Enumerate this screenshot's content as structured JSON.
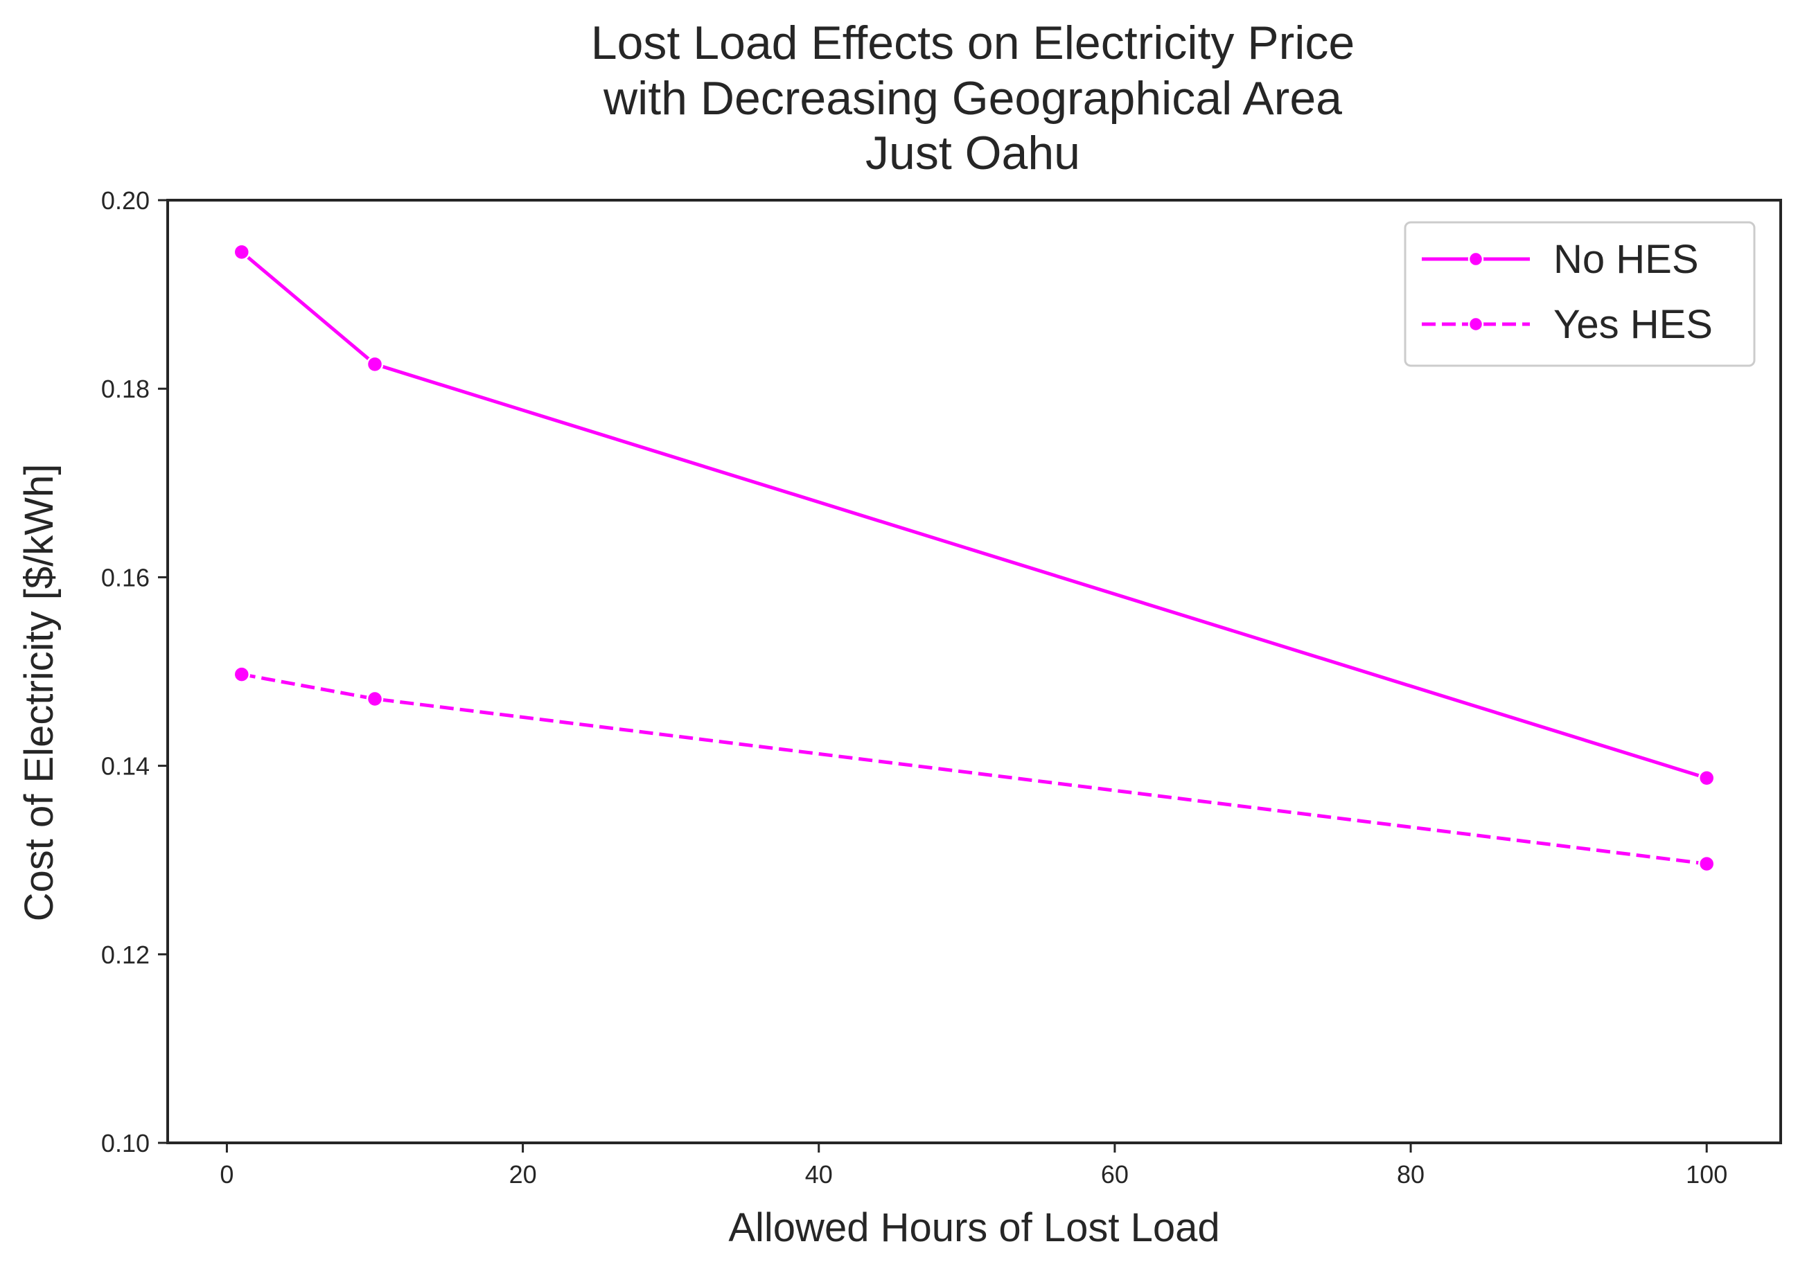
{
  "chart_data": {
    "type": "line",
    "title": [
      "Lost Load Effects on Electricity Price",
      "with Decreasing Geographical Area",
      "Just Oahu"
    ],
    "xlabel": "Allowed Hours of Lost Load",
    "ylabel": "Cost of Electricity [$/kWh]",
    "xlim": [
      -4,
      105
    ],
    "ylim": [
      0.1,
      0.2
    ],
    "xticks": [
      0,
      20,
      40,
      60,
      80,
      100
    ],
    "xtick_labels": [
      "0",
      "20",
      "40",
      "60",
      "80",
      "100"
    ],
    "yticks": [
      0.1,
      0.12,
      0.14,
      0.16,
      0.18,
      0.2
    ],
    "ytick_labels": [
      "0.10",
      "0.12",
      "0.14",
      "0.16",
      "0.18",
      "0.20"
    ],
    "grid": false,
    "legend_position": "top-right",
    "series": [
      {
        "name": "No HES",
        "line_style": "solid",
        "marker": "circle",
        "color": "#ff00ff",
        "x": [
          1,
          10,
          100
        ],
        "values": [
          0.1945,
          0.1826,
          0.1387
        ]
      },
      {
        "name": "Yes HES",
        "line_style": "dashed",
        "marker": "circle",
        "color": "#ff00ff",
        "x": [
          1,
          10,
          100
        ],
        "values": [
          0.1497,
          0.1471,
          0.1296
        ]
      }
    ]
  }
}
